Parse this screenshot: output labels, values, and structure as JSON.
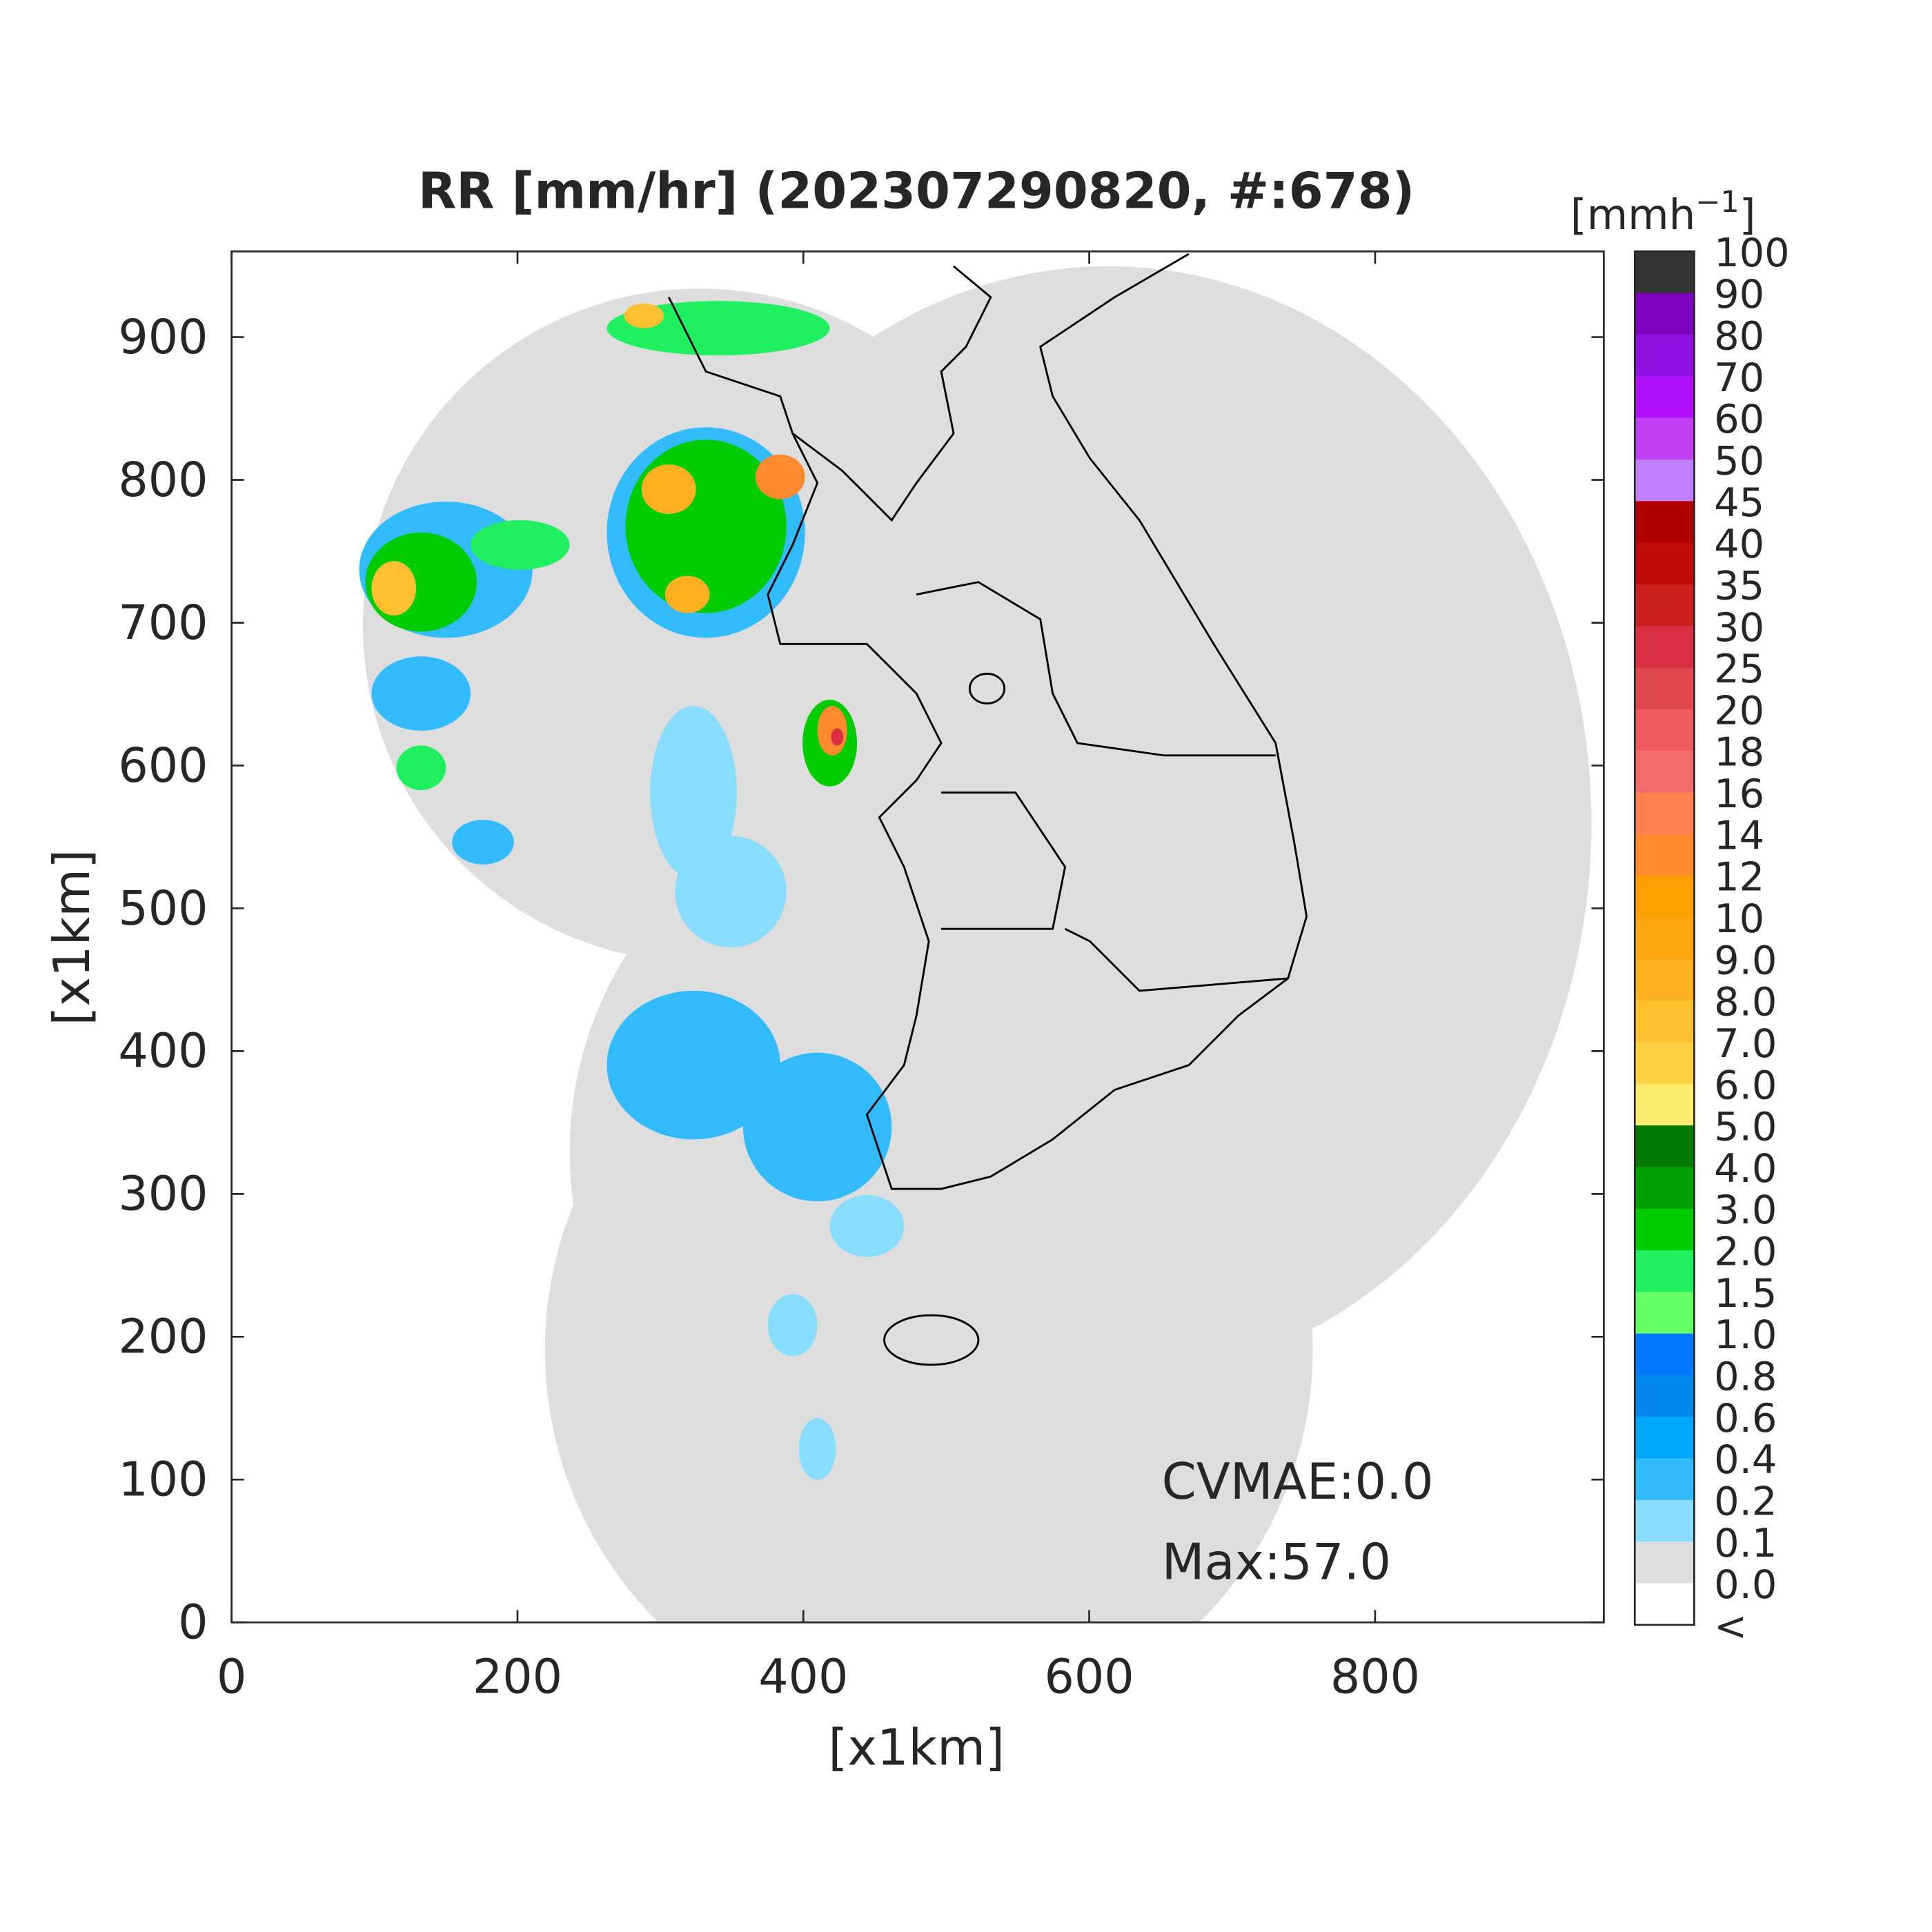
{
  "title": "RR [mm/hr] (202307290820, #:678)",
  "x_axis": {
    "label": "[x1km]",
    "lim": [
      0,
      960
    ],
    "ticks": [
      0,
      200,
      400,
      600,
      800
    ]
  },
  "y_axis": {
    "label": "[x1km]",
    "lim": [
      0,
      960
    ],
    "ticks": [
      0,
      100,
      200,
      300,
      400,
      500,
      600,
      700,
      800,
      900
    ]
  },
  "colorbar": {
    "unit_base": "[mmh",
    "unit_exponent": "−1",
    "unit_close": "]",
    "labels": [
      "100",
      "90",
      "80",
      "70",
      "60",
      "50",
      "45",
      "40",
      "35",
      "30",
      "25",
      "20",
      "18",
      "16",
      "14",
      "12",
      "10",
      "9.0",
      "8.0",
      "7.0",
      "6.0",
      "5.0",
      "4.0",
      "3.0",
      "2.0",
      "1.5",
      "1.0",
      "0.8",
      "0.6",
      "0.4",
      "0.2",
      "0.1",
      "0.0",
      "<"
    ],
    "colors": [
      "#333333",
      "#8000c0",
      "#9010e0",
      "#b010ff",
      "#c040f5",
      "#c080ff",
      "#b00000",
      "#c00a0a",
      "#cc2020",
      "#d83040",
      "#e04850",
      "#ee5a60",
      "#f26b6b",
      "#ff8050",
      "#ff8a30",
      "#ffa000",
      "#ffa510",
      "#ffb020",
      "#ffc030",
      "#ffd040",
      "#ffea70",
      "#007a00",
      "#00a000",
      "#00cc00",
      "#20f060",
      "#66ff66",
      "#0077ff",
      "#0088ee",
      "#00a8ff",
      "#33bbff",
      "#88ddff",
      "#dedede",
      "#ffffff"
    ]
  },
  "annotations": [
    "CVMAE:0.0",
    "Max:57.0"
  ]
}
